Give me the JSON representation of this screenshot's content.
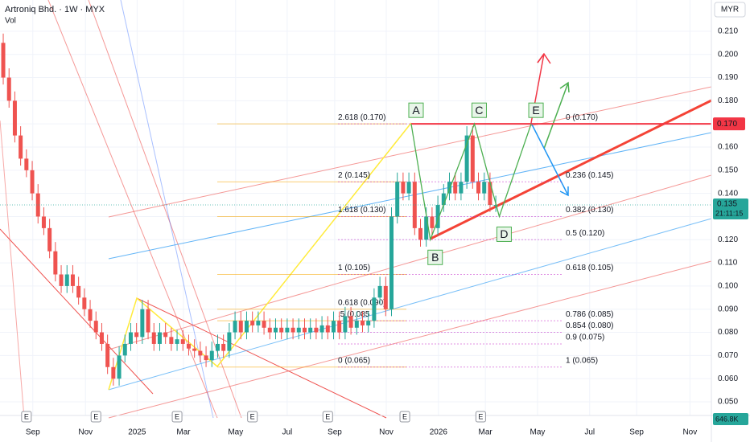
{
  "chart_data": {
    "type": "candlestick",
    "title": "Artroniq Bhd. · 1W · MYX",
    "subtitle": "Vol",
    "currency": "MYR",
    "up_color": "#26a69a",
    "down_color": "#ef5350",
    "x": [
      0,
      1,
      2,
      3,
      4,
      5,
      6,
      7,
      8,
      9,
      10,
      11,
      12,
      13,
      14,
      15,
      16,
      17,
      18,
      19,
      20,
      21,
      22,
      23,
      24,
      25,
      26,
      27,
      28,
      29,
      30,
      31,
      32,
      33,
      34,
      35,
      36,
      37,
      38,
      39,
      40,
      41,
      42,
      43,
      44,
      45,
      46,
      47,
      48,
      49,
      50,
      51,
      52,
      53,
      54,
      55,
      56,
      57,
      58,
      59,
      60,
      61,
      62,
      63,
      64,
      65,
      66,
      67,
      68,
      69,
      70,
      71,
      72,
      73,
      74,
      75,
      76,
      77,
      78,
      79,
      80,
      81,
      82,
      83,
      84,
      85
    ],
    "open": [
      0.205,
      0.19,
      0.18,
      0.165,
      0.155,
      0.15,
      0.14,
      0.13,
      0.125,
      0.115,
      0.105,
      0.1,
      0.105,
      0.1,
      0.095,
      0.09,
      0.085,
      0.08,
      0.075,
      0.065,
      0.06,
      0.07,
      0.075,
      0.08,
      0.078,
      0.09,
      0.08,
      0.075,
      0.08,
      0.078,
      0.075,
      0.077,
      0.075,
      0.073,
      0.072,
      0.07,
      0.068,
      0.072,
      0.075,
      0.072,
      0.08,
      0.085,
      0.08,
      0.085,
      0.083,
      0.085,
      0.082,
      0.08,
      0.082,
      0.08,
      0.082,
      0.08,
      0.082,
      0.08,
      0.082,
      0.08,
      0.083,
      0.08,
      0.085,
      0.08,
      0.087,
      0.082,
      0.085,
      0.083,
      0.085,
      0.095,
      0.1,
      0.09,
      0.13,
      0.145,
      0.14,
      0.145,
      0.125,
      0.12,
      0.13,
      0.125,
      0.135,
      0.14,
      0.145,
      0.14,
      0.145,
      0.165,
      0.145,
      0.14,
      0.145,
      0.135
    ],
    "high": [
      0.209,
      0.194,
      0.184,
      0.169,
      0.159,
      0.154,
      0.144,
      0.134,
      0.129,
      0.119,
      0.109,
      0.109,
      0.109,
      0.104,
      0.099,
      0.094,
      0.089,
      0.084,
      0.079,
      0.069,
      0.074,
      0.079,
      0.084,
      0.084,
      0.094,
      0.094,
      0.084,
      0.084,
      0.084,
      0.082,
      0.081,
      0.081,
      0.079,
      0.077,
      0.076,
      0.074,
      0.076,
      0.079,
      0.079,
      0.084,
      0.089,
      0.089,
      0.089,
      0.089,
      0.089,
      0.089,
      0.086,
      0.086,
      0.086,
      0.086,
      0.086,
      0.086,
      0.086,
      0.086,
      0.086,
      0.087,
      0.087,
      0.089,
      0.089,
      0.091,
      0.091,
      0.089,
      0.089,
      0.089,
      0.099,
      0.104,
      0.104,
      0.134,
      0.149,
      0.149,
      0.149,
      0.149,
      0.129,
      0.134,
      0.134,
      0.139,
      0.144,
      0.149,
      0.149,
      0.149,
      0.169,
      0.169,
      0.149,
      0.149,
      0.149,
      0.139
    ],
    "low": [
      0.187,
      0.177,
      0.162,
      0.152,
      0.147,
      0.137,
      0.127,
      0.122,
      0.112,
      0.102,
      0.097,
      0.097,
      0.097,
      0.092,
      0.087,
      0.082,
      0.077,
      0.072,
      0.062,
      0.057,
      0.057,
      0.067,
      0.072,
      0.075,
      0.075,
      0.077,
      0.072,
      0.072,
      0.075,
      0.072,
      0.072,
      0.072,
      0.07,
      0.069,
      0.067,
      0.065,
      0.065,
      0.069,
      0.069,
      0.069,
      0.077,
      0.077,
      0.077,
      0.08,
      0.08,
      0.079,
      0.077,
      0.077,
      0.077,
      0.077,
      0.077,
      0.077,
      0.077,
      0.077,
      0.077,
      0.077,
      0.077,
      0.077,
      0.077,
      0.077,
      0.079,
      0.079,
      0.08,
      0.08,
      0.082,
      0.092,
      0.087,
      0.087,
      0.127,
      0.137,
      0.137,
      0.122,
      0.117,
      0.117,
      0.122,
      0.122,
      0.132,
      0.137,
      0.137,
      0.137,
      0.142,
      0.142,
      0.137,
      0.137,
      0.132,
      0.132
    ],
    "close": [
      0.19,
      0.18,
      0.165,
      0.155,
      0.15,
      0.14,
      0.13,
      0.125,
      0.115,
      0.105,
      0.1,
      0.105,
      0.1,
      0.095,
      0.09,
      0.085,
      0.08,
      0.075,
      0.065,
      0.06,
      0.07,
      0.075,
      0.08,
      0.078,
      0.09,
      0.08,
      0.075,
      0.08,
      0.078,
      0.075,
      0.077,
      0.075,
      0.073,
      0.072,
      0.07,
      0.068,
      0.072,
      0.075,
      0.072,
      0.08,
      0.085,
      0.08,
      0.085,
      0.083,
      0.085,
      0.082,
      0.08,
      0.082,
      0.08,
      0.082,
      0.08,
      0.082,
      0.08,
      0.082,
      0.08,
      0.083,
      0.08,
      0.085,
      0.08,
      0.087,
      0.082,
      0.085,
      0.083,
      0.085,
      0.095,
      0.1,
      0.09,
      0.13,
      0.145,
      0.14,
      0.145,
      0.125,
      0.12,
      0.13,
      0.125,
      0.135,
      0.14,
      0.145,
      0.14,
      0.145,
      0.165,
      0.145,
      0.14,
      0.145,
      0.135,
      0.135
    ],
    "xlim": [
      -0.56,
      122.2
    ],
    "ylim": [
      0.0441,
      0.2235
    ],
    "xticks": [
      {
        "value": 5.1,
        "label": "Sep"
      },
      {
        "value": 14.2,
        "label": "Nov"
      },
      {
        "value": 23.1,
        "label": "2025"
      },
      {
        "value": 31.1,
        "label": "Mar"
      },
      {
        "value": 40.1,
        "label": "May"
      },
      {
        "value": 49,
        "label": "Jul"
      },
      {
        "value": 57.2,
        "label": "Sep"
      },
      {
        "value": 66.1,
        "label": "Nov"
      },
      {
        "value": 75.1,
        "label": "2026"
      },
      {
        "value": 83.2,
        "label": "Mar"
      },
      {
        "value": 92.2,
        "label": "May"
      },
      {
        "value": 101.2,
        "label": "Jul"
      },
      {
        "value": 109.3,
        "label": "Sep"
      },
      {
        "value": 118.5,
        "label": "Nov"
      }
    ],
    "yticks": [
      {
        "value": 0.05,
        "label": "0.050"
      },
      {
        "value": 0.06,
        "label": "0.060"
      },
      {
        "value": 0.07,
        "label": "0.070"
      },
      {
        "value": 0.08,
        "label": "0.080"
      },
      {
        "value": 0.09,
        "label": "0.090"
      },
      {
        "value": 0.1,
        "label": "0.100"
      },
      {
        "value": 0.11,
        "label": "0.110"
      },
      {
        "value": 0.12,
        "label": "0.120"
      },
      {
        "value": 0.13,
        "label": "0.130"
      },
      {
        "value": 0.14,
        "label": "0.140"
      },
      {
        "value": 0.15,
        "label": "0.150"
      },
      {
        "value": 0.16,
        "label": "0.160"
      },
      {
        "value": 0.17,
        "label": "0.170"
      },
      {
        "value": 0.18,
        "label": "0.180"
      },
      {
        "value": 0.19,
        "label": "0.190"
      },
      {
        "value": 0.2,
        "label": "0.200"
      },
      {
        "value": 0.21,
        "label": "0.210"
      }
    ],
    "grid": true,
    "fib_left": [
      {
        "value": 0.17,
        "label": "2.618 (0.170)"
      },
      {
        "value": 0.145,
        "label": "2 (0.145)"
      },
      {
        "value": 0.13,
        "label": "1.618 (0.130)"
      },
      {
        "value": 0.105,
        "label": "1 (0.105)"
      },
      {
        "value": 0.09,
        "label": "0.618 (0.090)"
      },
      {
        "value": 0.085,
        "label": ".5 (0.085"
      },
      {
        "value": 0.065,
        "label": "0 (0.065)"
      }
    ],
    "fib_right": [
      {
        "value": 0.17,
        "label": "0 (0.170)"
      },
      {
        "value": 0.145,
        "label": "0.236 (0.145)"
      },
      {
        "value": 0.13,
        "label": "0.382 (0.130)"
      },
      {
        "value": 0.12,
        "label": "0.5 (0.120)"
      },
      {
        "value": 0.105,
        "label": "0.618 (0.105)"
      },
      {
        "value": 0.085,
        "label": "0.786 (0.085)"
      },
      {
        "value": 0.08,
        "label": "0.854 (0.080)"
      },
      {
        "value": 0.075,
        "label": "0.9 (0.075)"
      },
      {
        "value": 0.065,
        "label": "1 (0.065)"
      }
    ],
    "waves": [
      {
        "label": "A",
        "x": 70.4,
        "y": 0.17
      },
      {
        "label": "B",
        "x": 73.7,
        "y": 0.12
      },
      {
        "label": "C",
        "x": 81.3,
        "y": 0.17
      },
      {
        "label": "D",
        "x": 85.6,
        "y": 0.13
      },
      {
        "label": "E",
        "x": 91.1,
        "y": 0.17
      }
    ],
    "resistance": {
      "value": 0.17,
      "label": "0.170"
    },
    "last_price": {
      "value": 0.135,
      "label": "0.135",
      "countdown": "21:11:15"
    },
    "volume_label": "646.8K",
    "events": [
      {
        "label": "E",
        "x": 4
      },
      {
        "label": "E",
        "x": 16
      },
      {
        "label": "E",
        "x": 30
      },
      {
        "label": "E",
        "x": 43
      },
      {
        "label": "E",
        "x": 56
      },
      {
        "label": "E",
        "x": 69.3
      },
      {
        "label": "E",
        "x": 82.4
      }
    ]
  }
}
